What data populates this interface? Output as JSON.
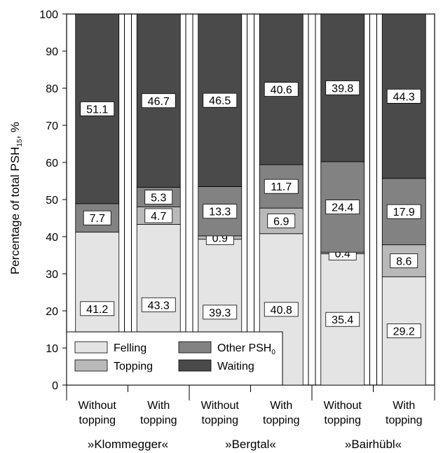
{
  "chart_data": {
    "type": "bar",
    "stacked": true,
    "ylabel": "Percentage of total PSH",
    "ylabel_sub": "15",
    "ylabel_suffix": ", %",
    "ylim": [
      0,
      100
    ],
    "yticks": [
      0,
      10,
      20,
      30,
      40,
      50,
      60,
      70,
      80,
      90,
      100
    ],
    "grid": false,
    "categories": [
      [
        "Without",
        "topping"
      ],
      [
        "With",
        "topping"
      ],
      [
        "Without",
        "topping"
      ],
      [
        "With",
        "topping"
      ],
      [
        "Without",
        "topping"
      ],
      [
        "With",
        "topping"
      ]
    ],
    "groups": [
      "»Klommegger«",
      "»Bergtal«",
      "»Bairhübl«"
    ],
    "series": [
      {
        "name": "Felling",
        "color": "#e4e4e4",
        "values": [
          41.2,
          43.3,
          39.3,
          40.8,
          35.4,
          29.2
        ]
      },
      {
        "name": "Topping",
        "color": "#b9b9b9",
        "values": [
          null,
          4.7,
          0.9,
          6.9,
          0.4,
          8.6
        ]
      },
      {
        "name": "Other PSH",
        "name_sub": "0",
        "color": "#828282",
        "values": [
          7.7,
          5.3,
          13.3,
          11.7,
          24.4,
          17.9
        ]
      },
      {
        "name": "Waiting",
        "color": "#4a4a4a",
        "values": [
          51.1,
          46.7,
          46.5,
          40.6,
          39.8,
          44.3
        ]
      }
    ],
    "legend": {
      "placement": "bottom-left",
      "columns": 2
    }
  }
}
